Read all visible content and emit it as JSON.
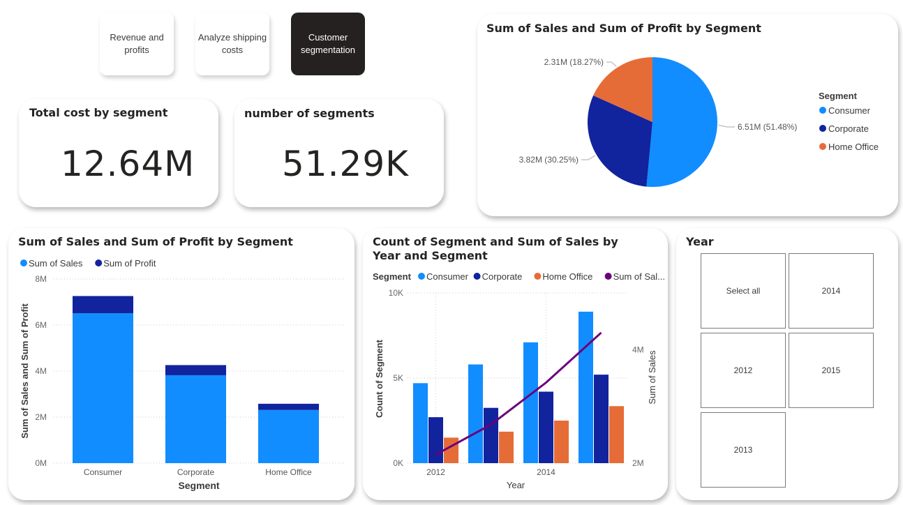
{
  "nav": {
    "buttons": [
      {
        "label": "Revenue and profits",
        "active": false
      },
      {
        "label": "Analyze shipping costs",
        "active": false
      },
      {
        "label": "Customer segmentation",
        "active": true
      }
    ]
  },
  "kpi_total_cost": {
    "title": "Total cost by segment",
    "value": "12.64M"
  },
  "kpi_segments": {
    "title": "number of segments",
    "value": "51.29K"
  },
  "pie_chart": {
    "title": "Sum of Sales and Sum of Profit by Segment",
    "legend_title": "Segment",
    "colors": {
      "Consumer": "#118DFF",
      "Corporate": "#12239E",
      "Home Office": "#E66C37"
    },
    "chart_data": {
      "type": "pie",
      "title": "Sum of Sales and Sum of Profit by Segment",
      "legend_title": "Segment",
      "legend_position": "right",
      "slices": [
        {
          "name": "Consumer",
          "label": "6.51M (51.48%)",
          "value": 6.51,
          "percent": 51.48,
          "color": "#118DFF"
        },
        {
          "name": "Corporate",
          "label": "3.82M (30.25%)",
          "value": 3.82,
          "percent": 30.25,
          "color": "#12239E"
        },
        {
          "name": "Home Office",
          "label": "2.31M (18.27%)",
          "value": 2.31,
          "percent": 18.27,
          "color": "#E66C37"
        }
      ]
    }
  },
  "bar_chart": {
    "title": "Sum of Sales and Sum of Profit by Segment",
    "chart_data": {
      "type": "bar",
      "stacked": true,
      "title": "Sum of Sales and Sum of Profit by Segment",
      "categories": [
        "Consumer",
        "Corporate",
        "Home Office"
      ],
      "series": [
        {
          "name": "Sum of Sales",
          "color": "#118DFF",
          "values": [
            6.51,
            3.82,
            2.31
          ]
        },
        {
          "name": "Sum of Profit",
          "color": "#12239E",
          "values": [
            0.75,
            0.44,
            0.27
          ]
        }
      ],
      "xlabel": "Segment",
      "ylabel": "Sum of Sales and Sum of Profit",
      "ylim": [
        0,
        8
      ],
      "yticks": [
        "0M",
        "2M",
        "4M",
        "6M",
        "8M"
      ],
      "grid": true,
      "legend_position": "top-left"
    }
  },
  "combo_chart": {
    "title": "Count of Segment and Sum of Sales by Year and Segment",
    "legend_title": "Segment",
    "legend_items": [
      {
        "name": "Consumer",
        "color": "#118DFF"
      },
      {
        "name": "Corporate",
        "color": "#12239E"
      },
      {
        "name": "Home Office",
        "color": "#E66C37"
      },
      {
        "name": "Sum of Sal...",
        "color": "#6B007B"
      }
    ],
    "chart_data": {
      "type": "bar",
      "combo": true,
      "title": "Count of Segment and Sum of Sales by Year and Segment",
      "x": [
        2012,
        2013,
        2014,
        2015
      ],
      "xticks": [
        "2012",
        "2014"
      ],
      "series": [
        {
          "name": "Consumer",
          "color": "#118DFF",
          "values": [
            4700,
            5800,
            7100,
            8900
          ]
        },
        {
          "name": "Corporate",
          "color": "#12239E",
          "values": [
            2700,
            3250,
            4200,
            5200
          ]
        },
        {
          "name": "Home Office",
          "color": "#E66C37",
          "values": [
            1500,
            1850,
            2500,
            3350
          ]
        }
      ],
      "line_series": {
        "name": "Sum of Sales",
        "color": "#6B007B",
        "axis": "right",
        "values": [
          2.15,
          2.68,
          3.42,
          4.3
        ]
      },
      "xlabel": "Year",
      "ylabel": "Count of Segment",
      "y2label": "Sum of Sales",
      "ylim": [
        0,
        10000
      ],
      "yticks": [
        "0K",
        "5K",
        "10K"
      ],
      "y2lim": [
        2,
        5
      ],
      "y2ticks": [
        "2M",
        "4M"
      ],
      "grid": true,
      "legend_position": "top-left"
    }
  },
  "year_slicer": {
    "title": "Year",
    "items": [
      {
        "label": "Select all"
      },
      {
        "label": "2014"
      },
      {
        "label": "2012"
      },
      {
        "label": "2015"
      },
      {
        "label": "2013"
      }
    ]
  }
}
